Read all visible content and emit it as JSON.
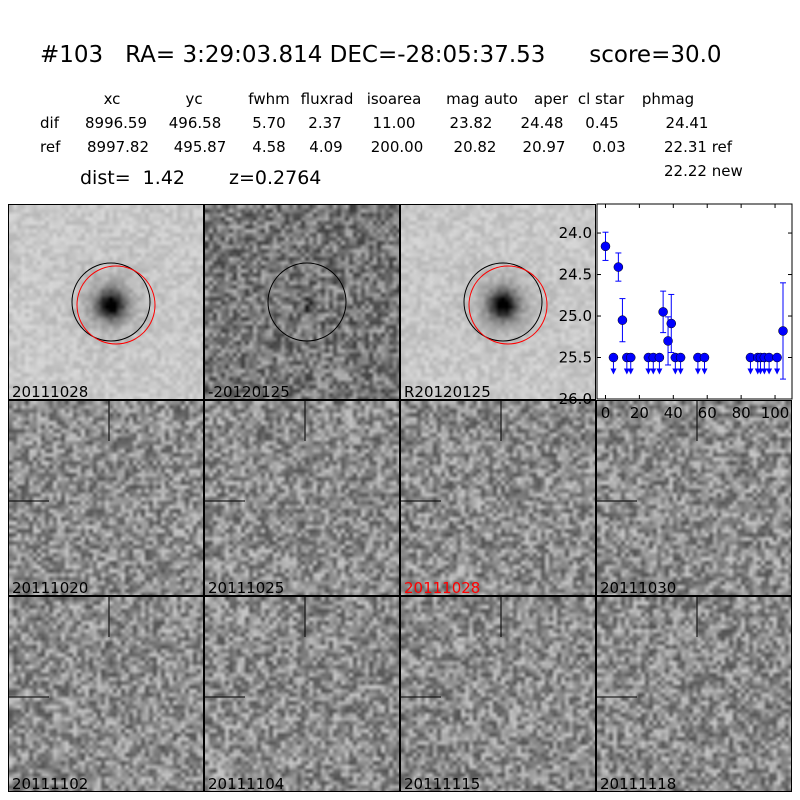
{
  "title": "#103   RA= 3:29:03.814 DEC=-28:05:37.53      score=30.0",
  "table": {
    "headers": [
      "xc",
      "yc",
      "fwhm",
      "fluxrad",
      "isoarea",
      "mag auto",
      "aper",
      "cl star",
      "phmag"
    ],
    "rows": [
      {
        "label": "dif",
        "values": [
          "8996.59",
          "496.58",
          "5.70",
          "2.37",
          "11.00",
          "23.82",
          "24.48",
          "0.45",
          "24.41"
        ]
      },
      {
        "label": "ref",
        "values": [
          "8997.82",
          "495.87",
          "4.58",
          "4.09",
          "200.00",
          "20.82",
          "20.97",
          "0.03",
          "22.31 ref"
        ]
      }
    ],
    "extra": "22.22 new",
    "dist": "dist=  1.42",
    "z": "z=0.2764"
  },
  "stamps": [
    {
      "label": "20111028",
      "type": "new"
    },
    {
      "label": "-20120125",
      "type": "diff"
    },
    {
      "label": "R20120125",
      "type": "ref"
    },
    {
      "label": "20111020",
      "type": "epoch"
    },
    {
      "label": "20111025",
      "type": "epoch"
    },
    {
      "label": "20111028",
      "type": "epoch",
      "highlight": "#ff0000"
    },
    {
      "label": "20111030",
      "type": "epoch"
    },
    {
      "label": "20111102",
      "type": "epoch"
    },
    {
      "label": "20111104",
      "type": "epoch"
    },
    {
      "label": "20111115",
      "type": "epoch"
    },
    {
      "label": "20111118",
      "type": "epoch"
    }
  ],
  "chart_data": {
    "type": "scatter",
    "xlim": [
      -5,
      110
    ],
    "ylim": [
      26.0,
      23.65
    ],
    "y_inverted": true,
    "xticks": [
      0,
      20,
      40,
      60,
      80,
      100
    ],
    "yticks": [
      24.0,
      24.5,
      25.0,
      25.5,
      26.0
    ],
    "ytick_labels": [
      "24.0",
      "24.5",
      "25.0",
      "25.5",
      "26.0"
    ],
    "color": "#0000ff",
    "detections": [
      {
        "x": 0,
        "y": 24.16,
        "err": 0.17
      },
      {
        "x": 7.6,
        "y": 24.41,
        "err": 0.17
      },
      {
        "x": 10,
        "y": 25.05,
        "err": 0.26
      },
      {
        "x": 34,
        "y": 24.95,
        "err": 0.25
      },
      {
        "x": 36.9,
        "y": 25.3,
        "err": 0.29
      },
      {
        "x": 38.8,
        "y": 25.09,
        "err": 0.35
      },
      {
        "x": 104.7,
        "y": 25.18,
        "err": 0.58
      }
    ],
    "upper_limits": {
      "y": 25.5,
      "x": [
        4.7,
        12.6,
        14.9,
        25.3,
        28.2,
        31.8,
        41.2,
        44.3,
        54.5,
        58.4,
        85.5,
        89.8,
        91.4,
        93.7,
        96.5,
        101.2
      ]
    }
  }
}
